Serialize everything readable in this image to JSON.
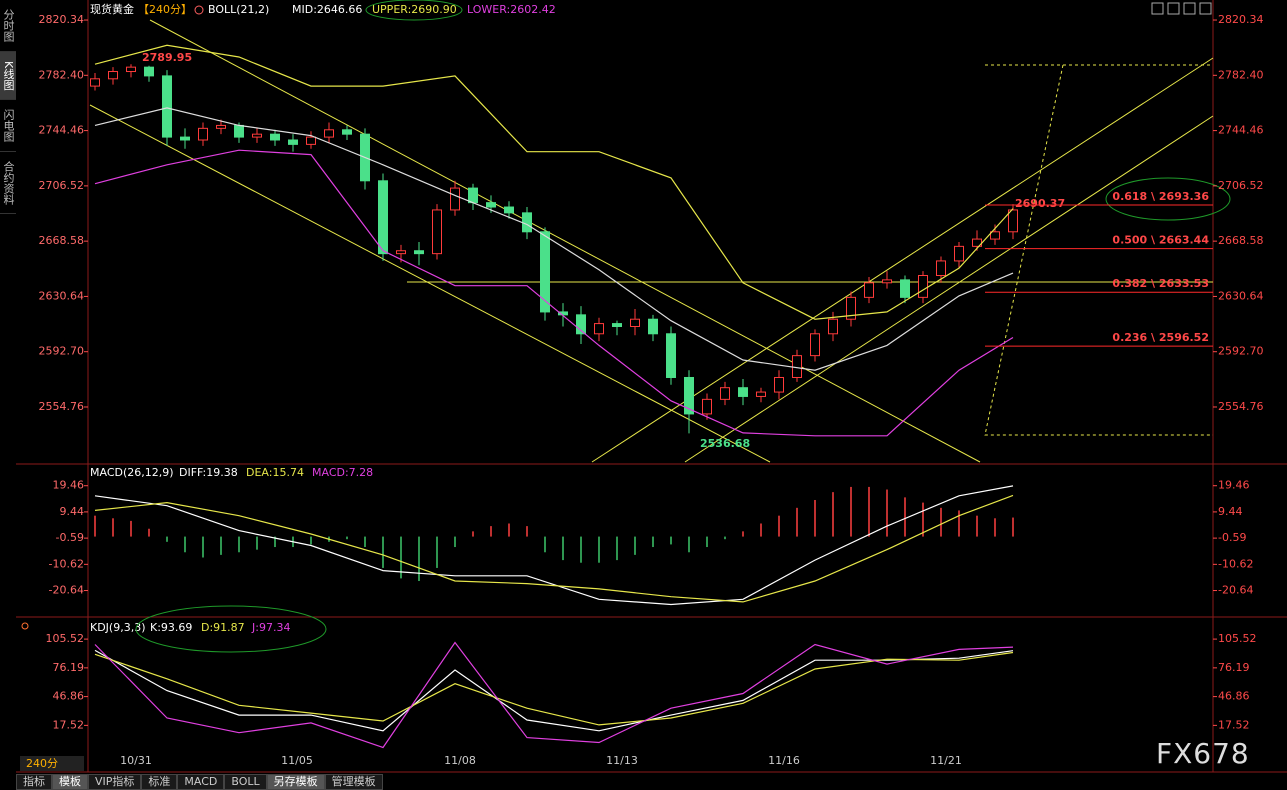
{
  "sidebar": [
    "分时图",
    "K线图",
    "闪电图",
    "合约资料"
  ],
  "price_panel": {
    "header": {
      "symbol": "现货黄金",
      "period": "【240分】",
      "indicator": "BOLL(21,2)",
      "mid": "MID:2646.66",
      "upper": "UPPER:2690.90",
      "lower": "LOWER:2602.42"
    },
    "ylim": [
      2517,
      2831
    ],
    "yticks": [
      2820.34,
      {
        "value": 2782.4,
        "label": "2782.40"
      },
      2744.46,
      2706.52,
      2668.58,
      2630.64,
      {
        "value": 2592.7,
        "label": "2592.70"
      },
      2554.76
    ],
    "candles": {
      "open": [
        2775,
        2780,
        2785,
        2788,
        2782,
        2740,
        2738,
        2746,
        2748,
        2740,
        2742,
        2738,
        2735,
        2740,
        2745,
        2742,
        2710,
        2660,
        2662,
        2660,
        2690,
        2705,
        2695,
        2692,
        2688,
        2675,
        2620,
        2618,
        2605,
        2612,
        2610,
        2615,
        2605,
        2575,
        2550,
        2560,
        2568,
        2562,
        2565,
        2575,
        2590,
        2605,
        2615,
        2630,
        2640,
        2642,
        2630,
        2645,
        2655,
        2665,
        2670,
        2675
      ],
      "high": [
        2784,
        2788,
        2789.95,
        2789,
        2786,
        2746,
        2750,
        2752,
        2750,
        2746,
        2745,
        2742,
        2744,
        2750,
        2748,
        2746,
        2715,
        2666,
        2668,
        2694,
        2710,
        2708,
        2700,
        2696,
        2692,
        2678,
        2626,
        2624,
        2616,
        2614,
        2622,
        2618,
        2610,
        2580,
        2564,
        2572,
        2574,
        2568,
        2580,
        2594,
        2608,
        2620,
        2634,
        2644,
        2648,
        2645,
        2648,
        2658,
        2668,
        2676,
        2680,
        2694
      ],
      "low": [
        2772,
        2776,
        2781,
        2778,
        2734,
        2732,
        2734,
        2742,
        2736,
        2736,
        2734,
        2730,
        2732,
        2736,
        2738,
        2704,
        2655,
        2654,
        2652,
        2656,
        2686,
        2690,
        2688,
        2684,
        2670,
        2614,
        2610,
        2598,
        2600,
        2604,
        2604,
        2600,
        2570,
        2536.68,
        2546,
        2556,
        2556,
        2558,
        2560,
        2572,
        2586,
        2600,
        2610,
        2626,
        2636,
        2626,
        2626,
        2640,
        2650,
        2662,
        2666,
        2670
      ],
      "close": [
        2780,
        2785,
        2788,
        2782,
        2740,
        2738,
        2746,
        2748,
        2740,
        2742,
        2738,
        2735,
        2740,
        2745,
        2742,
        2710,
        2660,
        2662,
        2660,
        2690,
        2705,
        2695,
        2692,
        2688,
        2675,
        2620,
        2618,
        2605,
        2612,
        2610,
        2615,
        2605,
        2575,
        2550,
        2560,
        2568,
        2562,
        2565,
        2575,
        2590,
        2605,
        2615,
        2630,
        2640,
        2642,
        2630,
        2645,
        2655,
        2665,
        2670,
        2675,
        2690
      ]
    },
    "boll": {
      "x": [
        0,
        4,
        8,
        12,
        16,
        20,
        24,
        28,
        32,
        36,
        40,
        44,
        48,
        51
      ],
      "upper": [
        2790,
        2803,
        2795,
        2775,
        2775,
        2782,
        2730,
        2730,
        2712,
        2640,
        2615,
        2620,
        2650,
        2690.9
      ],
      "mid": [
        2748,
        2760,
        2748,
        2741,
        2721,
        2700,
        2680,
        2649,
        2614,
        2587,
        2580,
        2597,
        2631,
        2646.66
      ],
      "lower": [
        2708,
        2721,
        2731,
        2728,
        2662,
        2638,
        2638,
        2597,
        2559,
        2537,
        2535,
        2535,
        2580,
        2602.42
      ]
    },
    "annotations": {
      "high": "2789.95",
      "low": "2536.68",
      "last": "2690.37"
    },
    "fib": [
      {
        "label": "0.618 \\ 2693.36",
        "value": 2693.36
      },
      {
        "label": "0.500 \\ 2663.44",
        "value": 2663.44
      },
      {
        "label": "0.382 \\ 2633.53",
        "value": 2633.53
      },
      {
        "label": "0.236 \\ 2596.52",
        "value": 2596.52
      }
    ]
  },
  "macd_panel": {
    "header": {
      "name": "MACD(26,12,9)",
      "diff": "DIFF:19.38",
      "dea": "DEA:15.74",
      "macd": "MACD:7.28"
    },
    "ylim": [
      -30,
      27
    ],
    "yticks": [
      19.46,
      9.44,
      -0.59,
      -10.62,
      -20.64
    ],
    "hist": [
      8,
      7,
      6,
      3,
      -2,
      -6,
      -8,
      -7,
      -6,
      -5,
      -4,
      -4,
      -3,
      -2,
      -1,
      -4,
      -12,
      -16,
      -17,
      -12,
      -4,
      2,
      4,
      5,
      4,
      -6,
      -9,
      -10,
      -10,
      -9,
      -7,
      -4,
      -3,
      -6,
      -4,
      -1,
      2,
      5,
      8,
      11,
      14,
      17,
      19,
      19,
      18,
      15,
      13,
      11,
      10,
      8,
      7,
      7.28
    ],
    "x": [
      0,
      4,
      8,
      12,
      16,
      20,
      24,
      28,
      32,
      36,
      40,
      44,
      48,
      51
    ],
    "diff": [
      15.6,
      11.8,
      2.3,
      -3.4,
      -13,
      -15,
      -15,
      -24,
      -26,
      -24,
      -9,
      4,
      15.6,
      19.38
    ],
    "dea": [
      10,
      13,
      8,
      1,
      -7,
      -17,
      -18,
      -20,
      -23,
      -25,
      -17,
      -5,
      8,
      15.74
    ]
  },
  "kdj_panel": {
    "header": {
      "name": "KDJ(9,3,3)",
      "k": "K:93.69",
      "d": "D:91.87",
      "j": "J:97.34"
    },
    "ylim": [
      -28,
      125
    ],
    "yticks": [
      105.52,
      76.19,
      46.86,
      17.52
    ],
    "x": [
      0,
      4,
      8,
      12,
      16,
      20,
      24,
      28,
      32,
      36,
      40,
      44,
      48,
      51
    ],
    "k": [
      94,
      53,
      28,
      28,
      12,
      74,
      23,
      12,
      28,
      43,
      84,
      84,
      86,
      93.69
    ],
    "d": [
      90,
      65,
      38,
      30,
      22,
      60,
      35,
      18,
      25,
      40,
      75,
      85,
      84,
      91.87
    ],
    "j": [
      100,
      25,
      10,
      20,
      -5,
      102,
      5,
      0,
      35,
      50,
      100,
      80,
      95,
      97.34
    ]
  },
  "x_axis": {
    "period": "240分",
    "dates": [
      "10/31",
      "11/05",
      "11/08",
      "11/13",
      "11/16",
      "11/21"
    ]
  },
  "toolbar": [
    "指标",
    "模板",
    "VIP指标",
    "标准",
    "MACD",
    "BOLL",
    "另存模板",
    "管理模板"
  ],
  "logo": "FX678"
}
